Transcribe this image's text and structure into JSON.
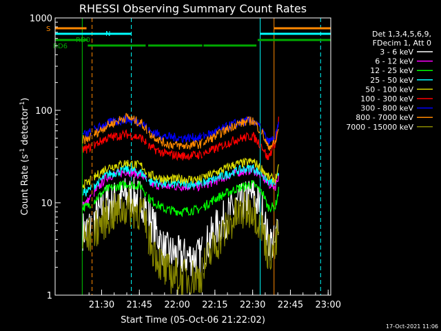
{
  "chart_data": {
    "type": "line",
    "title": "RHESSI Observing Summary Count Rates",
    "xlabel": "Start Time (05-Oct-06 21:22:02)",
    "ylabel_main": "Count Rate (s",
    "ylabel_sup1": "-1",
    "ylabel_mid": " detector",
    "ylabel_sup2": "-1",
    "ylabel_end": ")",
    "y_scale": "log",
    "ylim": [
      1,
      1000
    ],
    "xlim_minutes": [
      -7.0,
      99.0
    ],
    "x_ticks": [
      {
        "label": "21:30",
        "minute": 30
      },
      {
        "label": "21:45",
        "minute": 45
      },
      {
        "label": "22:00",
        "minute": 60
      },
      {
        "label": "22:15",
        "minute": 75
      },
      {
        "label": "22:30",
        "minute": 90
      },
      {
        "label": "22:45",
        "minute": 105
      },
      {
        "label": "23:00",
        "minute": 120
      }
    ],
    "y_ticks": [
      {
        "label": "1",
        "value": 1
      },
      {
        "label": "10",
        "value": 10
      },
      {
        "label": "100",
        "value": 100
      },
      {
        "label": "1000",
        "value": 1000
      }
    ],
    "x_start_minute": 22.03,
    "legend_header": [
      "Det 1,3,4,5,6,9,",
      "FDecim 1, Att 0"
    ],
    "series": [
      {
        "name": "3 - 6 keV",
        "color": "#ffffff",
        "values": [
          5,
          10,
          12,
          11,
          7,
          3,
          2.6,
          2.6,
          5,
          9,
          12,
          8,
          4,
          3.5,
          20
        ]
      },
      {
        "name": "6 - 12 keV",
        "color": "#ff00ff",
        "values": [
          10,
          19,
          22,
          20,
          16,
          15,
          15,
          15,
          17,
          21,
          23,
          19,
          16,
          15,
          28
        ]
      },
      {
        "name": "12 - 25 keV",
        "color": "#00ff00",
        "values": [
          9,
          14,
          16,
          15,
          11,
          8.5,
          8,
          8.5,
          11,
          14,
          16,
          13,
          9,
          9,
          22
        ]
      },
      {
        "name": "25 - 50 keV",
        "color": "#00ffff",
        "values": [
          13,
          20,
          23,
          21,
          17,
          16,
          16,
          16,
          18,
          22,
          24,
          20,
          17,
          16,
          30
        ]
      },
      {
        "name": "50 - 100 keV",
        "color": "#dddd00",
        "values": [
          16,
          24,
          27,
          25,
          20,
          18,
          18,
          18,
          21,
          26,
          28,
          23,
          19,
          18,
          32
        ]
      },
      {
        "name": "100 - 300 keV",
        "color": "#ff0000",
        "values": [
          38,
          50,
          55,
          50,
          40,
          34,
          32,
          33,
          38,
          48,
          53,
          40,
          30,
          45,
          160
        ]
      },
      {
        "name": "300 - 800 keV",
        "color": "#0000ff",
        "values": [
          55,
          72,
          80,
          74,
          60,
          52,
          50,
          51,
          58,
          72,
          78,
          60,
          45,
          50,
          105
        ]
      },
      {
        "name": "800 - 7000 keV",
        "color": "#ff8800",
        "values": [
          48,
          68,
          85,
          72,
          56,
          44,
          41,
          43,
          52,
          70,
          78,
          56,
          40,
          44,
          100
        ]
      },
      {
        "name": "7000 - 15000 keV",
        "color": "#888800",
        "values": [
          4,
          7,
          9,
          8,
          4,
          1.8,
          1.5,
          1.6,
          3.5,
          7,
          9,
          5,
          3,
          3,
          11
        ]
      }
    ],
    "flag_labels": {
      "s": "S",
      "n": "N",
      "rd0": "RD0",
      "rd6": "RD6"
    }
  },
  "footer": {
    "date": "17-Oct-2021 11:06"
  }
}
